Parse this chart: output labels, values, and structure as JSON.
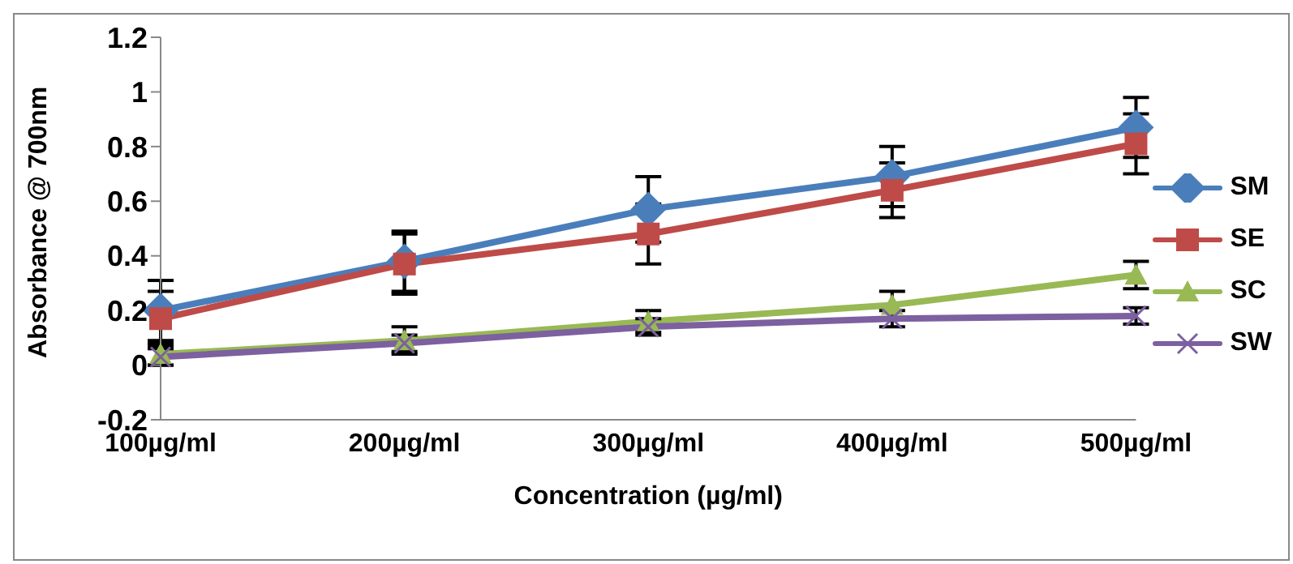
{
  "chart_data": {
    "type": "line",
    "xlabel": "Concentration (µg/ml)",
    "ylabel": "Absorbance @ 700nm",
    "categories": [
      "100µg/ml",
      "200µg/ml",
      "300µg/ml",
      "400µg/ml",
      "500µg/ml"
    ],
    "series": [
      {
        "name": "SM",
        "color": "#4a7ebb",
        "marker": "diamond",
        "values": [
          0.2,
          0.38,
          0.57,
          0.69,
          0.87
        ],
        "errors": [
          0.11,
          0.11,
          0.12,
          0.11,
          0.11
        ]
      },
      {
        "name": "SE",
        "color": "#be4b48",
        "marker": "square",
        "values": [
          0.17,
          0.37,
          0.48,
          0.64,
          0.81
        ],
        "errors": [
          0.1,
          0.11,
          0.11,
          0.1,
          0.11
        ]
      },
      {
        "name": "SC",
        "color": "#98b954",
        "marker": "triangle",
        "values": [
          0.04,
          0.09,
          0.16,
          0.22,
          0.33
        ],
        "errors": [
          0.04,
          0.05,
          0.04,
          0.05,
          0.05
        ]
      },
      {
        "name": "SW",
        "color": "#7d60a0",
        "marker": "cross",
        "values": [
          0.03,
          0.08,
          0.14,
          0.17,
          0.18
        ],
        "errors": [
          0.03,
          0.03,
          0.03,
          0.03,
          0.03
        ]
      }
    ],
    "ylim": [
      -0.2,
      1.2
    ],
    "yticks": [
      -0.2,
      0,
      0.2,
      0.4,
      0.6,
      0.8,
      1,
      1.2
    ],
    "grid": false,
    "legend": "right"
  }
}
